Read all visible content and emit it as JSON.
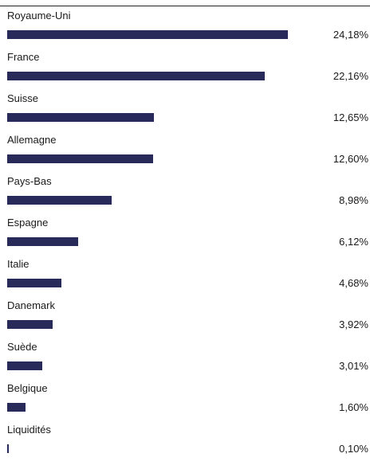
{
  "chart_data": {
    "type": "bar",
    "orientation": "horizontal",
    "categories": [
      "Royaume-Uni",
      "France",
      "Suisse",
      "Allemagne",
      "Pays-Bas",
      "Espagne",
      "Italie",
      "Danemark",
      "Suède",
      "Belgique",
      "Liquidités"
    ],
    "values": [
      24.18,
      22.16,
      12.65,
      12.6,
      8.98,
      6.12,
      4.68,
      3.92,
      3.01,
      1.6,
      0.1
    ],
    "value_labels": [
      "24,18%",
      "22,16%",
      "12,65%",
      "12,60%",
      "8,98%",
      "6,12%",
      "4,68%",
      "3,92%",
      "3,01%",
      "1,60%",
      "0,10%"
    ],
    "title": "",
    "xlabel": "",
    "ylabel": "",
    "grid": false,
    "legend": "none",
    "bar_color": "#282a5a"
  }
}
